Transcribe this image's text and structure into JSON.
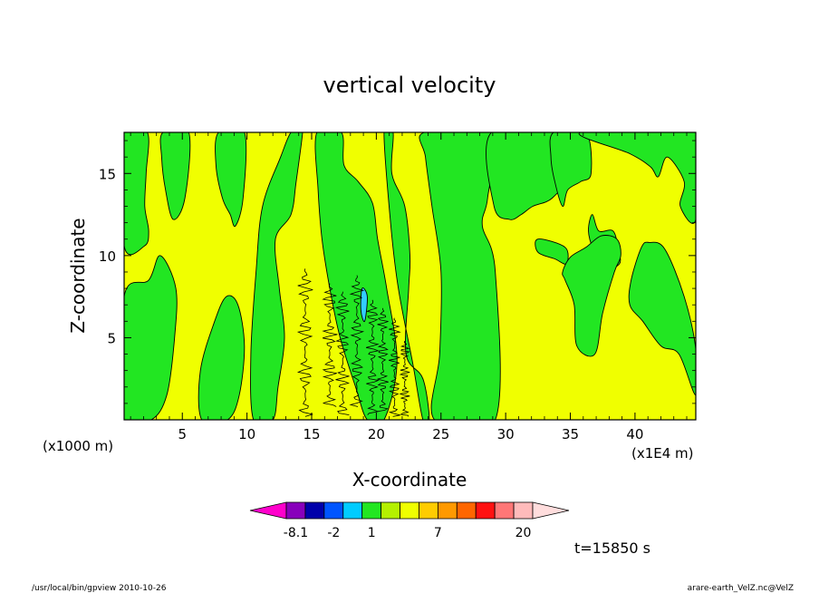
{
  "chart_data": {
    "type": "heatmap",
    "title": "vertical velocity",
    "xlabel": "X-coordinate",
    "ylabel": "Z-coordinate",
    "x_unit_left": "(x1000 m)",
    "x_unit_right": "(x1E4 m)",
    "xlim": [
      0.5,
      44.7
    ],
    "ylim": [
      0,
      17.5
    ],
    "x_ticks": [
      "5",
      "10",
      "15",
      "20",
      "25",
      "30",
      "35",
      "40"
    ],
    "x_tick_values": [
      5,
      10,
      15,
      20,
      25,
      30,
      35,
      40
    ],
    "y_ticks": [
      "5",
      "10",
      "15"
    ],
    "y_tick_values": [
      5,
      10,
      15
    ],
    "time_label": "t=15850 s",
    "footer_left": "/usr/local/bin/gpview  2010-10-26",
    "footer_right": "arare-earth_VelZ.nc@VelZ",
    "colors": {
      "positive_fill": "#f0ff00",
      "negative_fill": "#22e622",
      "strong_negative": "#33ccff"
    },
    "colorbar": {
      "colors": [
        "#ff00cc",
        "#8800bb",
        "#0000aa",
        "#0055ff",
        "#00ccff",
        "#22e622",
        "#b4f000",
        "#f0ff00",
        "#ffcc00",
        "#ff9900",
        "#ff6600",
        "#ff1111",
        "#ff7777",
        "#ffbbbb",
        "#ffdddd"
      ],
      "labels": [
        "-8.1",
        "-2",
        "1",
        "7",
        "20"
      ],
      "label_slots": [
        1.5,
        3.5,
        5.5,
        9,
        13.5
      ]
    },
    "fields": [
      {
        "type": "negative",
        "x": [
          0.5,
          2.3,
          2.2,
          2.1,
          2.4,
          2.1,
          0.5
        ],
        "z": [
          17.5,
          17.5,
          15,
          13,
          11.5,
          10.6,
          10.6
        ]
      },
      {
        "type": "negative",
        "x": [
          3.5,
          5.5,
          5.2,
          4.3,
          3.7,
          3.4
        ],
        "z": [
          17.5,
          17.5,
          13.5,
          12.2,
          14,
          16
        ]
      },
      {
        "type": "negative",
        "x": [
          0.5,
          2.6,
          3.8,
          4.4,
          4.5,
          3.3,
          2.4,
          0.5
        ],
        "z": [
          0,
          0,
          1.5,
          5,
          8,
          10,
          8.5,
          7.5
        ]
      },
      {
        "type": "negative",
        "x": [
          7.8,
          9.8,
          9.7,
          9.1,
          8.7,
          8.1,
          7.6
        ],
        "z": [
          17.5,
          17.5,
          13.5,
          11.8,
          12.5,
          13.5,
          15.5
        ]
      },
      {
        "type": "negative",
        "x": [
          6.5,
          8.5,
          9.4,
          9.8,
          9.3,
          8.4,
          7.5,
          6.4
        ],
        "z": [
          0,
          0,
          1.5,
          4.5,
          7,
          7.5,
          6,
          3
        ]
      },
      {
        "type": "negative",
        "x": [
          10.5,
          12,
          12.4,
          12.9,
          12.5,
          12.2,
          13.4,
          13.8,
          14.3,
          14.1,
          13.4,
          12.6,
          11.2,
          10.7,
          10.3
        ],
        "z": [
          0,
          0,
          2,
          5,
          8,
          11,
          12.5,
          14.5,
          17.5,
          17.5,
          17.5,
          16,
          13,
          9,
          4
        ]
      },
      {
        "type": "negative",
        "x": [
          15.4,
          17.3,
          17.5,
          18.6,
          19.7,
          20.1,
          20.8,
          21.6,
          20.6,
          19.3,
          18.4,
          17.2,
          16.4,
          15.8,
          15.5
        ],
        "z": [
          17.5,
          17.5,
          15.5,
          14.5,
          13.2,
          11,
          8,
          3.5,
          0,
          0,
          2,
          5,
          8,
          11,
          14
        ]
      },
      {
        "type": "negative",
        "x": [
          20.6,
          21.3,
          21.2,
          22.2,
          22.6,
          22.5,
          22.3,
          23.6,
          24.1,
          23.6,
          22.8,
          21.7,
          21.1
        ],
        "z": [
          17.5,
          17.5,
          15,
          13,
          10,
          8,
          4,
          2.5,
          0,
          0,
          3.5,
          8,
          12
        ]
      },
      {
        "type": "negative",
        "x": [
          23.7,
          28.9,
          28.6,
          28.2,
          29.2,
          29.2,
          24.5,
          24.9,
          25,
          24.3,
          23.8
        ],
        "z": [
          17.5,
          17.5,
          13.5,
          11.8,
          9,
          0,
          0,
          4,
          9,
          13,
          16
        ]
      },
      {
        "type": "negative",
        "x": [
          28.9,
          34.7,
          34.9,
          33.6,
          32.1,
          31.2,
          30.3,
          29.1
        ],
        "z": [
          17.5,
          17.5,
          15,
          13.5,
          13,
          12.5,
          12.2,
          13
        ]
      },
      {
        "type": "negative",
        "x": [
          33.7,
          36.2,
          36.6,
          35.8,
          34.8,
          34.4,
          33.8,
          33.5
        ],
        "z": [
          17.5,
          17.5,
          15,
          14.5,
          14,
          13,
          14.5,
          16
        ]
      },
      {
        "type": "negative",
        "x": [
          35.8,
          44.7,
          44.7,
          43.5,
          43.8,
          42.5,
          41.8,
          41.2,
          39.6
        ],
        "z": [
          17.5,
          17.5,
          12.2,
          13,
          14.5,
          16,
          14.8,
          15.4,
          16.2
        ]
      },
      {
        "type": "negative",
        "x": [
          36.7,
          37.2,
          38.3,
          38.7,
          38.8,
          37.6,
          36.8,
          36.4
        ],
        "z": [
          12.5,
          11.5,
          11.5,
          10.4,
          9.5,
          9.2,
          10.3,
          11.5
        ]
      },
      {
        "type": "negative",
        "x": [
          32.5,
          34.6,
          34.7,
          33.8,
          32.5
        ],
        "z": [
          11,
          10.5,
          9.5,
          9.8,
          10.2
        ]
      },
      {
        "type": "negative",
        "x": [
          34.6,
          35.3,
          35.5,
          36.9,
          37.5,
          38.4,
          38.9,
          38.6,
          37.4,
          36.2,
          35,
          34.4
        ],
        "z": [
          8.5,
          7,
          4.5,
          4,
          6.5,
          9,
          10,
          11,
          11.2,
          10.5,
          9.9,
          9
        ]
      },
      {
        "type": "negative",
        "x": [
          39.7,
          40.5,
          41.1,
          42.3,
          43.8,
          44.7,
          44.7,
          43.4,
          42,
          40.6,
          39.6
        ],
        "z": [
          8.5,
          10.5,
          10.8,
          10.4,
          7.5,
          4.3,
          1.5,
          4,
          4.5,
          6,
          7
        ]
      },
      {
        "type": "strong",
        "x": [
          18.9,
          19.3,
          19.1,
          18.8
        ],
        "z": [
          8,
          7.5,
          6,
          6.7
        ]
      }
    ],
    "ripples": [
      {
        "x_center": 14.5,
        "z_bottom": 0.2,
        "z_top": 9.2,
        "amplitude": 0.6
      },
      {
        "x_center": 16.4,
        "z_bottom": 0.8,
        "z_top": 8.3,
        "amplitude": 0.6
      },
      {
        "x_center": 17.4,
        "z_bottom": 0.3,
        "z_top": 7.8,
        "amplitude": 0.55
      },
      {
        "x_center": 18.5,
        "z_bottom": 0.8,
        "z_top": 8.8,
        "amplitude": 0.5
      },
      {
        "x_center": 19.7,
        "z_bottom": 0.3,
        "z_top": 7.3,
        "amplitude": 0.5
      },
      {
        "x_center": 20.5,
        "z_bottom": 0.5,
        "z_top": 6.8,
        "amplitude": 0.45
      },
      {
        "x_center": 21.4,
        "z_bottom": 0.2,
        "z_top": 6.2,
        "amplitude": 0.45
      },
      {
        "x_center": 22.2,
        "z_bottom": 0.2,
        "z_top": 4.8,
        "amplitude": 0.4
      }
    ]
  }
}
